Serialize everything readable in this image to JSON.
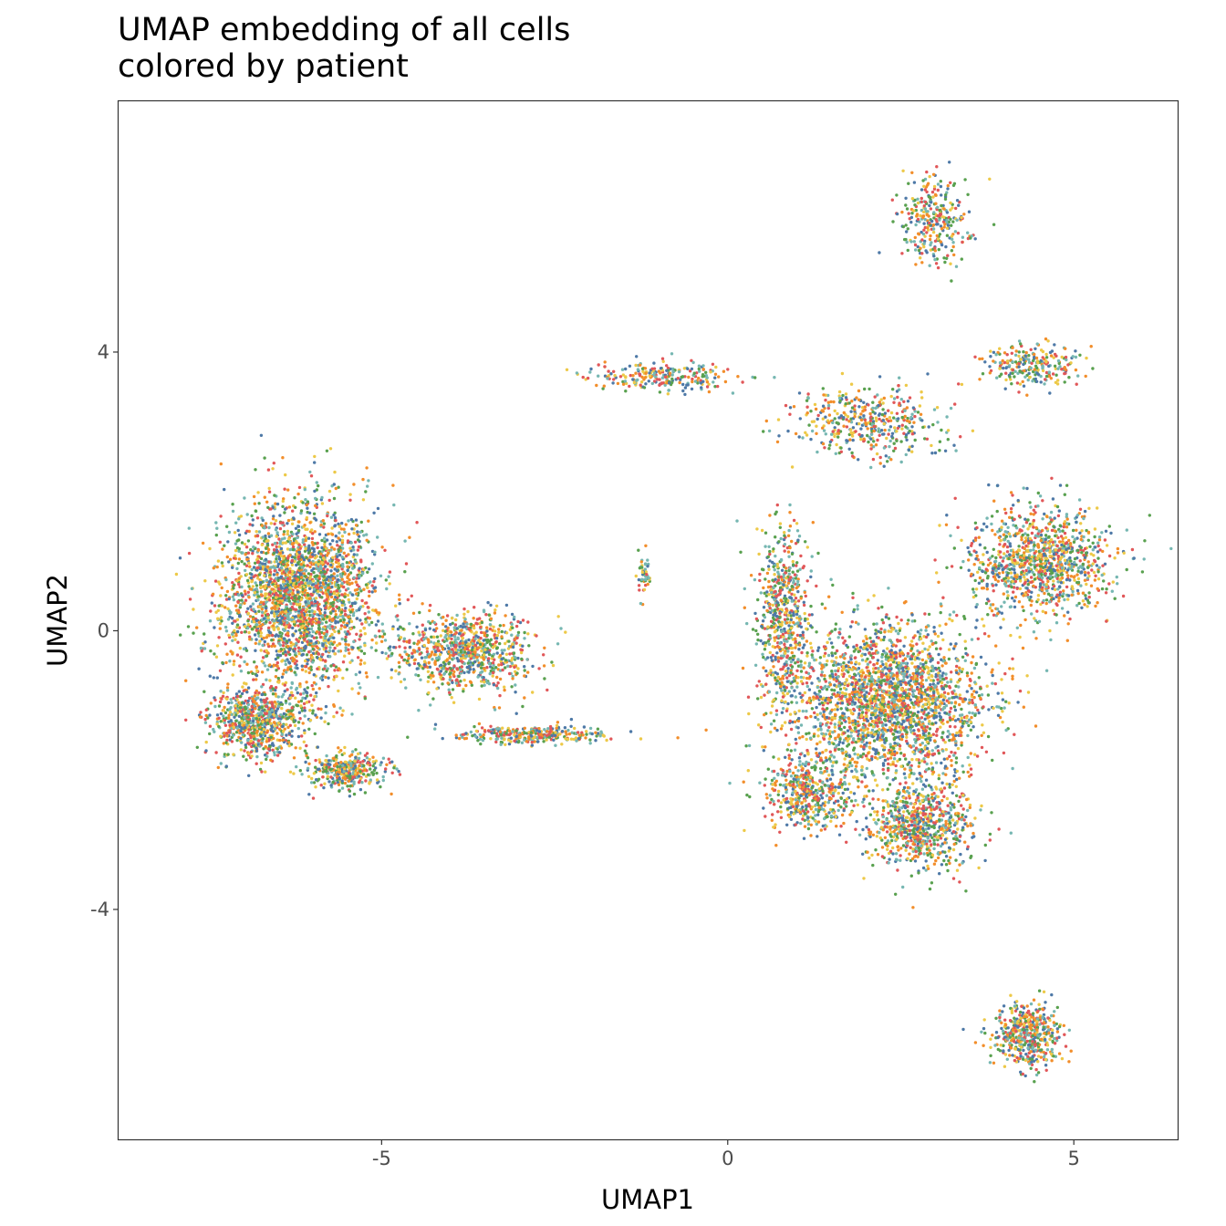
{
  "chart_data": {
    "type": "scatter",
    "title": "UMAP embedding of all cells\ncolored by patient",
    "title_lines": [
      "UMAP embedding of all cells",
      "colored by patient"
    ],
    "xlabel": "UMAP1",
    "ylabel": "UMAP2",
    "xlim": [
      -8.8,
      6.5
    ],
    "ylim": [
      -7.3,
      7.6
    ],
    "x_ticks": [
      -5,
      0,
      5
    ],
    "x_tick_labels": [
      "-5",
      "0",
      "5"
    ],
    "y_ticks": [
      -4,
      0,
      4
    ],
    "y_tick_labels": [
      "-4",
      "0",
      "4"
    ],
    "grid": false,
    "legend": "none",
    "point_colors": [
      "#4e79a7",
      "#f28e2b",
      "#59a14f",
      "#76b7b2",
      "#e15759",
      "#edc948"
    ],
    "clusters": [
      {
        "cx": -6.2,
        "cy": 0.5,
        "sx": 1.0,
        "sy": 1.2,
        "weight": 0.22
      },
      {
        "cx": -6.8,
        "cy": -1.3,
        "sx": 0.6,
        "sy": 0.45,
        "weight": 0.06
      },
      {
        "cx": -5.5,
        "cy": -2.0,
        "sx": 0.5,
        "sy": 0.25,
        "weight": 0.03
      },
      {
        "cx": -3.8,
        "cy": -0.3,
        "sx": 0.9,
        "sy": 0.5,
        "weight": 0.07
      },
      {
        "cx": -2.8,
        "cy": -1.5,
        "sx": 1.0,
        "sy": 0.12,
        "weight": 0.025
      },
      {
        "cx": -1.2,
        "cy": 0.8,
        "sx": 0.1,
        "sy": 0.25,
        "weight": 0.004
      },
      {
        "cx": -0.9,
        "cy": 3.65,
        "sx": 0.9,
        "sy": 0.18,
        "weight": 0.02
      },
      {
        "cx": 2.0,
        "cy": 3.0,
        "sx": 1.0,
        "sy": 0.45,
        "weight": 0.035
      },
      {
        "cx": 3.0,
        "cy": 5.9,
        "sx": 0.45,
        "sy": 0.55,
        "weight": 0.025
      },
      {
        "cx": 4.4,
        "cy": 3.8,
        "sx": 0.6,
        "sy": 0.3,
        "weight": 0.02
      },
      {
        "cx": 4.5,
        "cy": 1.0,
        "sx": 0.9,
        "sy": 0.7,
        "weight": 0.09
      },
      {
        "cx": 2.3,
        "cy": -1.0,
        "sx": 1.3,
        "sy": 1.0,
        "weight": 0.2
      },
      {
        "cx": 0.8,
        "cy": 0.2,
        "sx": 0.35,
        "sy": 1.2,
        "weight": 0.05
      },
      {
        "cx": 2.8,
        "cy": -2.8,
        "sx": 0.7,
        "sy": 0.6,
        "weight": 0.06
      },
      {
        "cx": 1.2,
        "cy": -2.3,
        "sx": 0.6,
        "sy": 0.5,
        "weight": 0.04
      },
      {
        "cx": 4.3,
        "cy": -5.8,
        "sx": 0.45,
        "sy": 0.4,
        "weight": 0.04
      }
    ],
    "n_points": 12000
  }
}
